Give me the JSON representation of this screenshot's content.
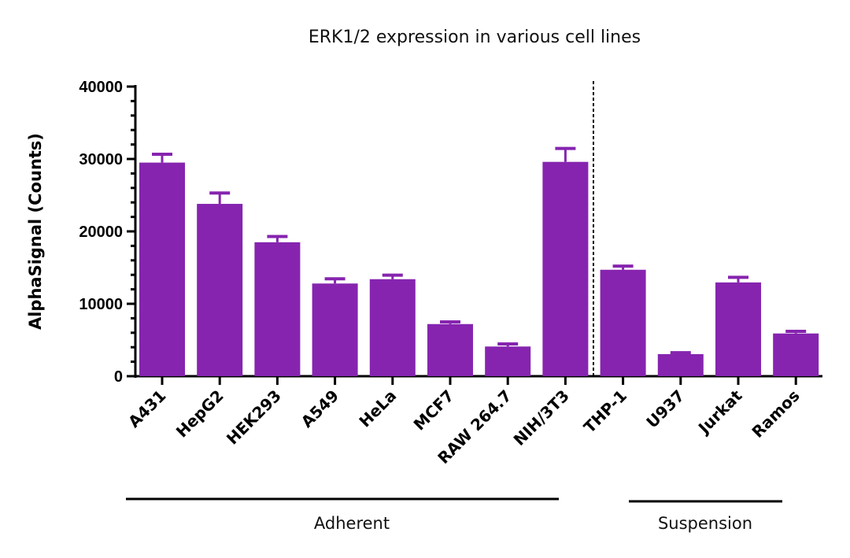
{
  "chart_data": {
    "type": "bar",
    "title": "ERK1/2 expression in various cell lines",
    "xlabel": "",
    "ylabel": "AlphaSignal (Counts)",
    "ylim": [
      0,
      40000
    ],
    "yticks": [
      "0",
      "10000",
      "20000",
      "30000",
      "40000"
    ],
    "minor_tick_step": 2000,
    "grid": false,
    "bar_color": "#8624AF",
    "categories": [
      "A431",
      "HepG2",
      "HEK293",
      "A549",
      "HeLa",
      "MCF7",
      "RAW 264.7",
      "NIH/3T3",
      "THP-1",
      "U937",
      "Jurkat",
      "Ramos"
    ],
    "values": [
      29500,
      23800,
      18500,
      12800,
      13400,
      7200,
      4100,
      29600,
      14700,
      3050,
      12950,
      5900
    ],
    "error_upper": [
      30650,
      25300,
      19300,
      13450,
      13950,
      7500,
      4450,
      31450,
      15200,
      3250,
      13650,
      6200
    ],
    "groups": [
      {
        "label": "Adherent",
        "members": [
          "A431",
          "HepG2",
          "HEK293",
          "A549",
          "HeLa",
          "MCF7",
          "RAW 264.7",
          "NIH/3T3"
        ]
      },
      {
        "label": "Suspension",
        "members": [
          "THP-1",
          "U937",
          "Jurkat",
          "Ramos"
        ]
      }
    ]
  }
}
